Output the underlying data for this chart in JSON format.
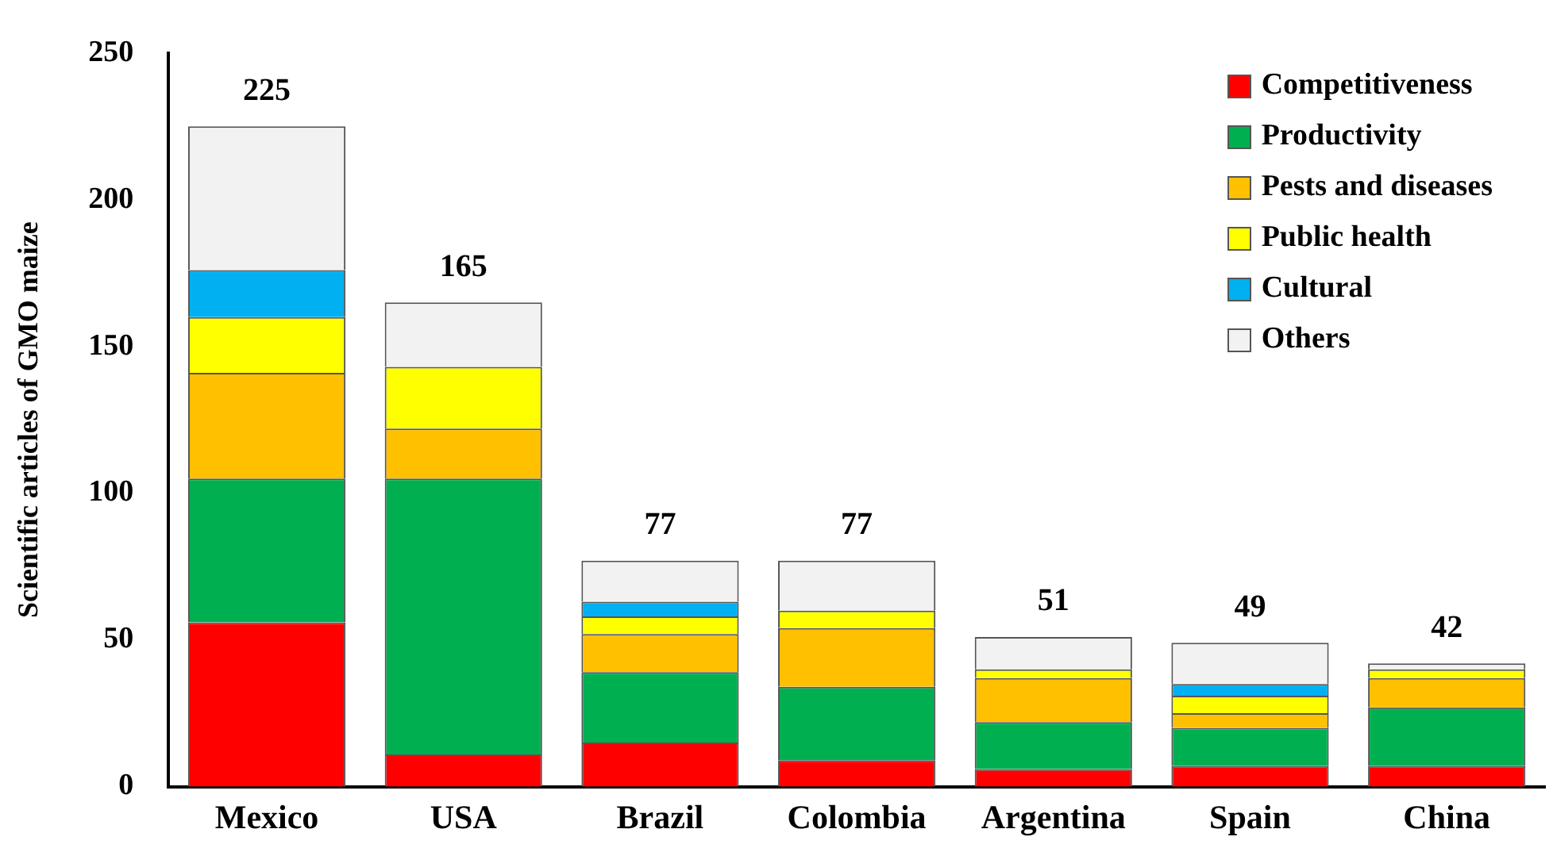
{
  "chart_data": {
    "type": "bar",
    "stacked": true,
    "ylabel": "Scientific articles of GMO maize",
    "categories": [
      "Mexico",
      "USA",
      "Brazil",
      "Colombia",
      "Argentina",
      "Spain",
      "China"
    ],
    "series": [
      {
        "name": "Competitiveness",
        "color": "#ff0000",
        "values": [
          56,
          11,
          15,
          9,
          6,
          7,
          7
        ]
      },
      {
        "name": "Productivity",
        "color": "#00b050",
        "values": [
          49,
          94,
          24,
          25,
          16,
          13,
          20
        ]
      },
      {
        "name": "Pests and diseases",
        "color": "#ffc000",
        "values": [
          36,
          17,
          13,
          20,
          15,
          5,
          10
        ]
      },
      {
        "name": "Public health",
        "color": "#ffff00",
        "values": [
          19,
          21,
          6,
          6,
          3,
          6,
          3
        ]
      },
      {
        "name": "Cultural",
        "color": "#00b0f0",
        "values": [
          16,
          0,
          5,
          0,
          0,
          4,
          0
        ]
      },
      {
        "name": "Others",
        "color": "#f2f2f2",
        "values": [
          49,
          22,
          14,
          17,
          11,
          14,
          2
        ]
      }
    ],
    "totals": [
      "225",
      "165",
      "77",
      "77",
      "51",
      "49",
      "42"
    ],
    "ylim": [
      0,
      250
    ],
    "yticks": [
      0,
      50,
      100,
      150,
      200,
      250
    ],
    "grid": false,
    "legend": "top right"
  }
}
